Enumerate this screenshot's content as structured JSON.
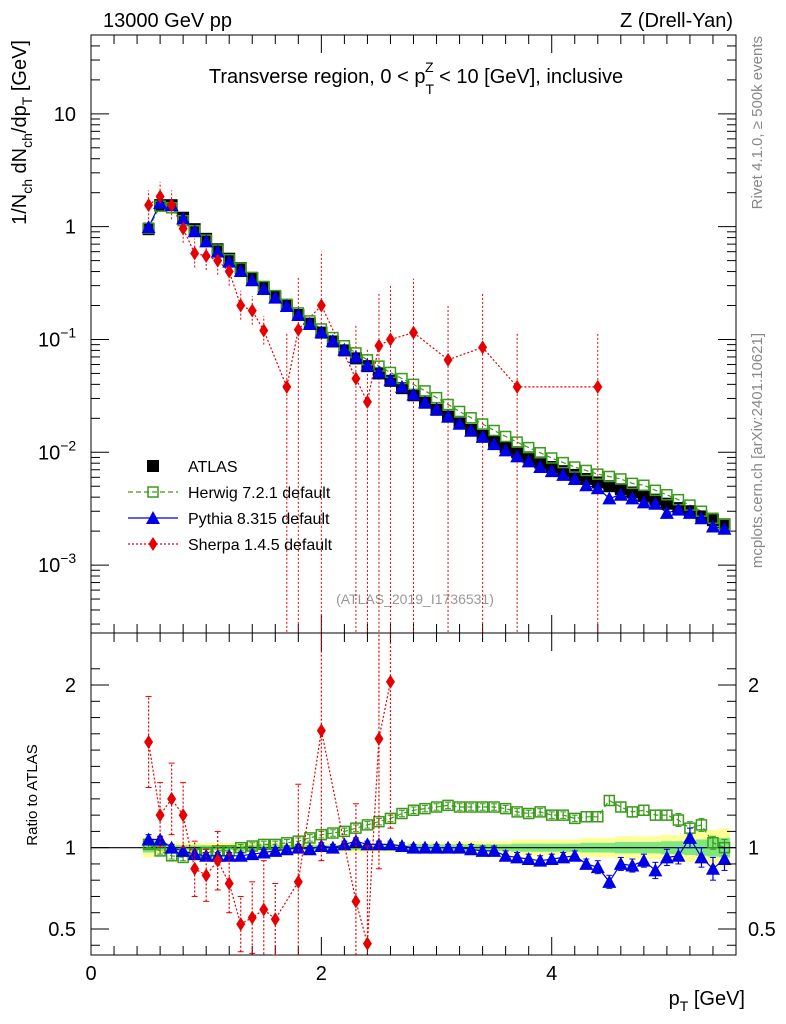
{
  "header": {
    "left": "13000 GeV pp",
    "right": "Z (Drell-Yan)"
  },
  "side_labels": {
    "rivet": "Rivet 4.1.0, ≥ 500k events",
    "mcplots": "mcplots.cern.ch [arXiv:2401.10621]"
  },
  "colors": {
    "atlas": "#000000",
    "herwig": "#3a9a1a",
    "pythia": "#0000e6",
    "sherpa": "#e60000",
    "band_outer": "#ffff99",
    "band_inner": "#80e680"
  },
  "chart_data": [
    {
      "type": "scatter",
      "name": "main",
      "title_parts": {
        "a": "Transverse region, 0 < p",
        "sub": "T",
        "sup": "Z",
        "b": " < 10 [GeV], inclusive"
      },
      "ylabel_parts": {
        "a": "1/N",
        "s1": "ch",
        "b": " dN",
        "s2": "ch",
        "c": "/dp",
        "s3": "T",
        "d": " [GeV]"
      },
      "yscale": "log",
      "xlim": [
        0,
        5.6
      ],
      "ylim": [
        0.00025,
        50
      ],
      "yticks": [
        {
          "v": 10,
          "label": "10",
          "sup": ""
        },
        {
          "v": 1,
          "label": "1",
          "sup": ""
        },
        {
          "v": 0.1,
          "label": "10",
          "sup": "−1"
        },
        {
          "v": 0.01,
          "label": "10",
          "sup": "−2"
        },
        {
          "v": 0.001,
          "label": "10",
          "sup": "−3"
        }
      ],
      "annotation": "(ATLAS_2019_I1736531)",
      "legend": {
        "position": "bottom-left",
        "entries": [
          {
            "key": "atlas",
            "label": "ATLAS"
          },
          {
            "key": "herwig",
            "label": "Herwig 7.2.1 default"
          },
          {
            "key": "pythia",
            "label": "Pythia 8.315 default"
          },
          {
            "key": "sherpa",
            "label": "Sherpa 1.4.5 default"
          }
        ]
      },
      "x": [
        0.5,
        0.6,
        0.7,
        0.8,
        0.9,
        1.0,
        1.1,
        1.2,
        1.3,
        1.4,
        1.5,
        1.6,
        1.7,
        1.8,
        1.9,
        2.0,
        2.1,
        2.2,
        2.3,
        2.4,
        2.5,
        2.6,
        2.7,
        2.8,
        2.9,
        3.0,
        3.1,
        3.2,
        3.3,
        3.4,
        3.5,
        3.6,
        3.7,
        3.8,
        3.9,
        4.0,
        4.1,
        4.2,
        4.3,
        4.4,
        4.5,
        4.6,
        4.7,
        4.8,
        4.9,
        5.0,
        5.1,
        5.2,
        5.3,
        5.4,
        5.5
      ],
      "series": [
        {
          "name": "ATLAS",
          "key": "atlas",
          "marker": "square-filled",
          "values": [
            0.95,
            1.55,
            1.55,
            1.2,
            0.95,
            0.78,
            0.63,
            0.52,
            0.43,
            0.35,
            0.29,
            0.24,
            0.2,
            0.165,
            0.138,
            0.115,
            0.096,
            0.08,
            0.068,
            0.058,
            0.05,
            0.043,
            0.037,
            0.032,
            0.0275,
            0.0238,
            0.0207,
            0.018,
            0.0158,
            0.014,
            0.0124,
            0.0111,
            0.01,
            0.009,
            0.0081,
            0.0074,
            0.0068,
            0.0063,
            0.0058,
            0.0054,
            0.005,
            0.0047,
            0.0044,
            0.0041,
            0.0038,
            0.0035,
            0.0032,
            0.003,
            0.0027,
            0.0025,
            0.0023
          ]
        },
        {
          "name": "Herwig 7.2.1 default",
          "key": "herwig",
          "marker": "square-open",
          "line": "dashed",
          "values": [
            0.97,
            1.52,
            1.47,
            1.13,
            0.92,
            0.76,
            0.62,
            0.51,
            0.43,
            0.355,
            0.295,
            0.245,
            0.205,
            0.172,
            0.146,
            0.124,
            0.104,
            0.088,
            0.076,
            0.066,
            0.058,
            0.051,
            0.045,
            0.04,
            0.035,
            0.0305,
            0.0265,
            0.023,
            0.0202,
            0.0178,
            0.0156,
            0.0138,
            0.0123,
            0.011,
            0.0099,
            0.0089,
            0.0081,
            0.0074,
            0.0069,
            0.0064,
            0.0061,
            0.0058,
            0.0053,
            0.0051,
            0.0046,
            0.0042,
            0.0038,
            0.0034,
            0.003,
            0.0026,
            0.0023
          ]
        },
        {
          "name": "Pythia 8.315 default",
          "key": "pythia",
          "marker": "triangle-filled",
          "line": "solid",
          "values": [
            0.99,
            1.62,
            1.55,
            1.18,
            0.91,
            0.74,
            0.6,
            0.49,
            0.405,
            0.335,
            0.28,
            0.235,
            0.198,
            0.165,
            0.137,
            0.116,
            0.097,
            0.081,
            0.07,
            0.059,
            0.051,
            0.044,
            0.038,
            0.0325,
            0.0277,
            0.024,
            0.0207,
            0.0179,
            0.0155,
            0.0137,
            0.0118,
            0.0104,
            0.0092,
            0.0083,
            0.0074,
            0.0068,
            0.0063,
            0.0058,
            0.0051,
            0.0048,
            0.0039,
            0.0042,
            0.0039,
            0.0036,
            0.0035,
            0.0029,
            0.0031,
            0.0029,
            0.0026,
            0.0022,
            0.0021
          ]
        },
        {
          "name": "Sherpa 1.4.5 default",
          "key": "sherpa",
          "marker": "diamond-filled",
          "line": "dotted",
          "values": [
            1.55,
            1.85,
            1.55,
            0.96,
            0.58,
            0.55,
            0.5,
            0.4,
            0.2,
            0.18,
            0.12,
            null,
            0.038,
            0.122,
            null,
            0.2,
            null,
            null,
            0.045,
            0.028,
            0.088,
            0.1,
            null,
            0.115,
            null,
            null,
            0.066,
            null,
            null,
            0.085,
            null,
            null,
            0.038,
            null,
            null,
            null,
            null,
            null,
            null,
            0.038,
            null,
            null,
            null,
            null,
            null,
            null,
            null,
            null,
            null,
            null,
            null
          ]
        }
      ]
    },
    {
      "type": "scatter",
      "name": "ratio",
      "ylabel": "Ratio to ATLAS",
      "xlabel_parts": {
        "a": "p",
        "sub": "T",
        "b": " [GeV]"
      },
      "xlim": [
        0,
        5.6
      ],
      "ylim": [
        0.34,
        2.32
      ],
      "xticks": [
        0,
        2,
        4
      ],
      "yticks": [
        0.5,
        1,
        2
      ],
      "reference_line": 1,
      "band_outer_halfwidth": [
        0.06,
        0.04,
        0.03,
        0.03,
        0.03,
        0.03,
        0.03,
        0.03,
        0.03,
        0.03,
        0.03,
        0.03,
        0.03,
        0.03,
        0.03,
        0.03,
        0.03,
        0.03,
        0.03,
        0.03,
        0.03,
        0.03,
        0.03,
        0.03,
        0.03,
        0.03,
        0.03,
        0.04,
        0.04,
        0.04,
        0.04,
        0.04,
        0.05,
        0.05,
        0.05,
        0.05,
        0.05,
        0.05,
        0.06,
        0.06,
        0.06,
        0.07,
        0.07,
        0.07,
        0.07,
        0.08,
        0.08,
        0.09,
        0.1,
        0.11,
        0.12
      ],
      "band_inner_halfwidth": [
        0.03,
        0.02,
        0.015,
        0.015,
        0.015,
        0.015,
        0.015,
        0.015,
        0.015,
        0.015,
        0.015,
        0.015,
        0.015,
        0.015,
        0.015,
        0.015,
        0.015,
        0.015,
        0.015,
        0.015,
        0.015,
        0.015,
        0.015,
        0.02,
        0.02,
        0.02,
        0.02,
        0.02,
        0.02,
        0.02,
        0.02,
        0.02,
        0.025,
        0.025,
        0.025,
        0.025,
        0.025,
        0.025,
        0.03,
        0.03,
        0.03,
        0.035,
        0.035,
        0.035,
        0.035,
        0.04,
        0.04,
        0.045,
        0.05,
        0.055,
        0.06
      ],
      "series": [
        {
          "name": "Herwig 7.2.1 default",
          "key": "herwig",
          "values": [
            1.02,
            0.98,
            0.95,
            0.94,
            0.96,
            0.97,
            0.98,
            0.98,
            1.0,
            1.01,
            1.02,
            1.02,
            1.03,
            1.04,
            1.06,
            1.08,
            1.09,
            1.1,
            1.12,
            1.14,
            1.16,
            1.18,
            1.21,
            1.23,
            1.24,
            1.25,
            1.26,
            1.25,
            1.25,
            1.25,
            1.25,
            1.24,
            1.22,
            1.21,
            1.22,
            1.2,
            1.2,
            1.18,
            1.19,
            1.19,
            1.29,
            1.25,
            1.22,
            1.23,
            1.2,
            1.2,
            1.17,
            1.12,
            1.14,
            1.03,
            1.0
          ],
          "errors": [
            0.02,
            0.02,
            0.02,
            0.02,
            0.02,
            0.02,
            0.02,
            0.02,
            0.02,
            0.02,
            0.02,
            0.02,
            0.02,
            0.02,
            0.02,
            0.02,
            0.02,
            0.02,
            0.02,
            0.02,
            0.02,
            0.02,
            0.02,
            0.02,
            0.02,
            0.02,
            0.02,
            0.02,
            0.02,
            0.02,
            0.02,
            0.02,
            0.02,
            0.02,
            0.02,
            0.02,
            0.02,
            0.02,
            0.03,
            0.03,
            0.03,
            0.03,
            0.03,
            0.03,
            0.03,
            0.03,
            0.04,
            0.04,
            0.04,
            0.04,
            0.05
          ]
        },
        {
          "name": "Pythia 8.315 default",
          "key": "pythia",
          "values": [
            1.05,
            1.05,
            1.0,
            0.98,
            0.96,
            0.95,
            0.95,
            0.95,
            0.95,
            0.96,
            0.97,
            0.98,
            0.99,
            1.0,
            0.99,
            1.01,
            1.0,
            1.02,
            1.04,
            1.02,
            1.02,
            1.02,
            1.01,
            1.0,
            1.0,
            1.0,
            1.0,
            1.0,
            0.99,
            0.98,
            0.98,
            0.95,
            0.94,
            0.93,
            0.92,
            0.93,
            0.94,
            0.95,
            0.9,
            0.88,
            0.79,
            0.9,
            0.89,
            0.92,
            0.86,
            0.94,
            0.95,
            1.06,
            0.94,
            0.87,
            0.93
          ],
          "errors": [
            0.03,
            0.02,
            0.02,
            0.02,
            0.02,
            0.02,
            0.02,
            0.02,
            0.02,
            0.02,
            0.02,
            0.02,
            0.02,
            0.02,
            0.02,
            0.02,
            0.02,
            0.02,
            0.02,
            0.02,
            0.02,
            0.02,
            0.02,
            0.02,
            0.02,
            0.02,
            0.02,
            0.02,
            0.03,
            0.03,
            0.03,
            0.03,
            0.03,
            0.03,
            0.03,
            0.03,
            0.03,
            0.03,
            0.03,
            0.04,
            0.04,
            0.04,
            0.04,
            0.04,
            0.05,
            0.05,
            0.05,
            0.06,
            0.06,
            0.07,
            0.07
          ]
        },
        {
          "name": "Sherpa 1.4.5 default",
          "key": "sherpa",
          "values": [
            1.65,
            1.2,
            1.3,
            1.2,
            0.87,
            0.83,
            0.92,
            0.78,
            0.53,
            0.57,
            0.62,
            0.56,
            null,
            0.79,
            null,
            1.72,
            null,
            null,
            0.67,
            0.41,
            1.67,
            2.02,
            null,
            null,
            null,
            null,
            null,
            null,
            null,
            null,
            null,
            null,
            null,
            null,
            null,
            null,
            null,
            null,
            null,
            null,
            null,
            null,
            null,
            null,
            null,
            null,
            null,
            null,
            null,
            null,
            null
          ],
          "errors": [
            0.28,
            0.2,
            0.22,
            0.2,
            0.17,
            0.16,
            0.18,
            0.18,
            0.17,
            0.22,
            0.3,
            0.22,
            0.0,
            0.6,
            0.0,
            0.8,
            0.0,
            0.0,
            0.6,
            0.6,
            0.8,
            0.9,
            0.0,
            0.0,
            0.0,
            0.0,
            0.0,
            0.0,
            0.0,
            0.0,
            0.0,
            0.0,
            0.0,
            0.0,
            0.0,
            0.0,
            0.0,
            0.0,
            0.0,
            0.0,
            0.0,
            0.0,
            0.0,
            0.0,
            0.0,
            0.0,
            0.0,
            0.0,
            0.0,
            0.0,
            0.0
          ]
        }
      ]
    }
  ]
}
